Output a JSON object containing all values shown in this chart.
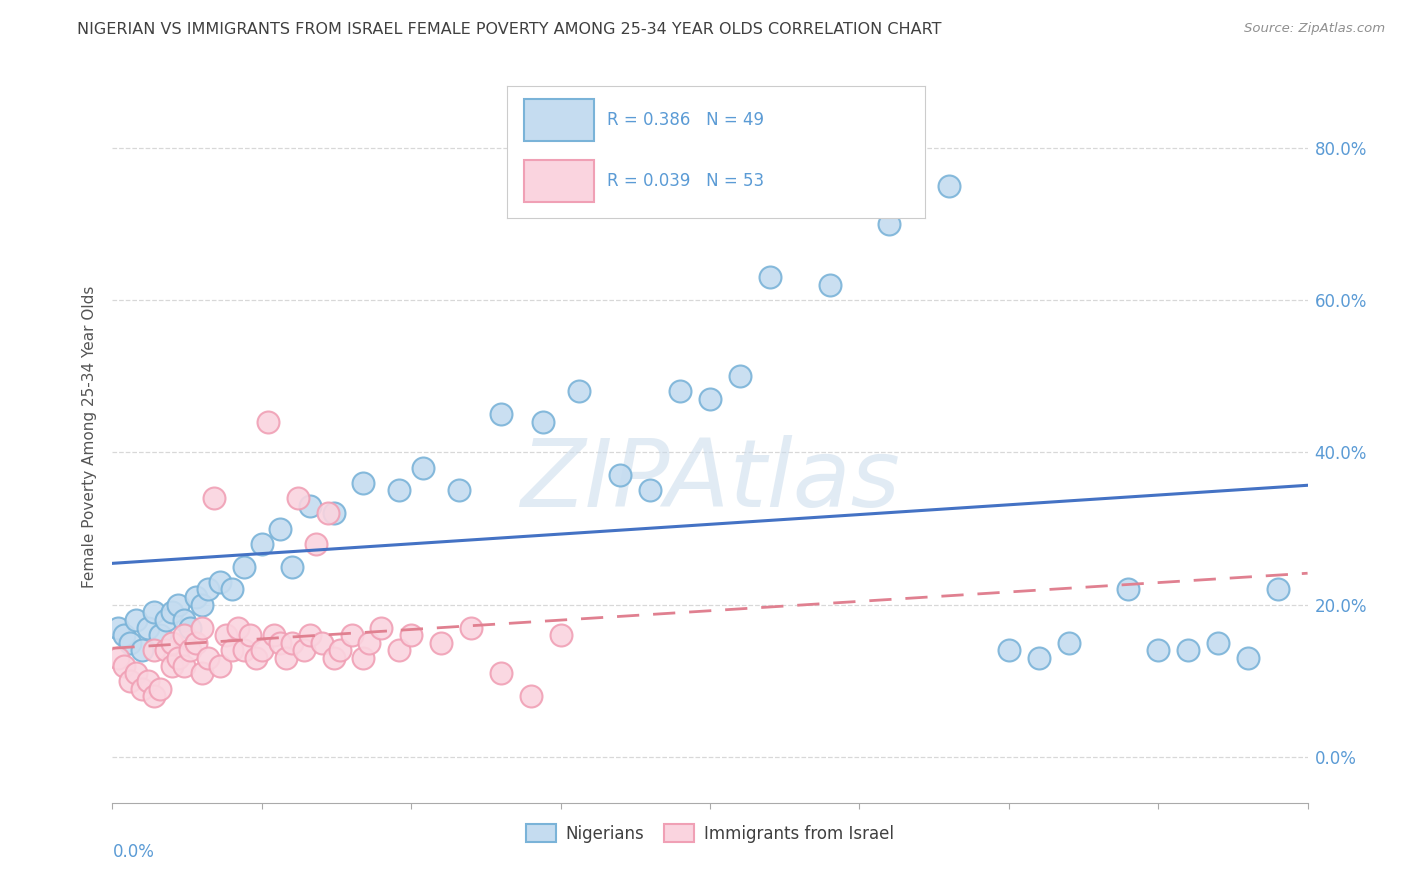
{
  "title": "NIGERIAN VS IMMIGRANTS FROM ISRAEL FEMALE POVERTY AMONG 25-34 YEAR OLDS CORRELATION CHART",
  "source": "Source: ZipAtlas.com",
  "ylabel": "Female Poverty Among 25-34 Year Olds",
  "legend_label_blue": "Nigerians",
  "legend_label_pink": "Immigrants from Israel",
  "watermark": "ZIPAtlas",
  "xmin": 0.0,
  "xmax": 0.2,
  "ymin": -0.06,
  "ymax": 0.9,
  "yticks": [
    0.0,
    0.2,
    0.4,
    0.6,
    0.8
  ],
  "ytick_labels": [
    "0.0%",
    "20.0%",
    "40.0%",
    "60.0%",
    "80.0%"
  ],
  "blue_color": "#7ab3d8",
  "blue_fill": "#c5dcf0",
  "pink_color": "#f0a0b5",
  "pink_fill": "#fad4df",
  "blue_line_color": "#4472c4",
  "pink_line_color": "#e08090",
  "legend_blue_R": "R = 0.386",
  "legend_blue_N": "N = 49",
  "legend_pink_R": "R = 0.039",
  "legend_pink_N": "N = 53",
  "background_color": "#ffffff",
  "grid_color": "#d8d8d8",
  "title_color": "#404040",
  "tick_color": "#5b9bd5",
  "blue_x": [
    0.001,
    0.002,
    0.003,
    0.004,
    0.005,
    0.006,
    0.007,
    0.008,
    0.009,
    0.01,
    0.011,
    0.012,
    0.013,
    0.014,
    0.015,
    0.016,
    0.018,
    0.02,
    0.022,
    0.025,
    0.028,
    0.03,
    0.033,
    0.037,
    0.042,
    0.048,
    0.052,
    0.058,
    0.065,
    0.072,
    0.078,
    0.085,
    0.09,
    0.095,
    0.1,
    0.105,
    0.11,
    0.12,
    0.13,
    0.14,
    0.15,
    0.155,
    0.16,
    0.17,
    0.175,
    0.18,
    0.185,
    0.19,
    0.195
  ],
  "blue_y": [
    0.17,
    0.16,
    0.15,
    0.18,
    0.14,
    0.17,
    0.19,
    0.16,
    0.18,
    0.19,
    0.2,
    0.18,
    0.17,
    0.21,
    0.2,
    0.22,
    0.23,
    0.22,
    0.25,
    0.28,
    0.3,
    0.25,
    0.33,
    0.32,
    0.36,
    0.35,
    0.38,
    0.35,
    0.45,
    0.44,
    0.48,
    0.37,
    0.35,
    0.48,
    0.47,
    0.5,
    0.63,
    0.62,
    0.7,
    0.75,
    0.14,
    0.13,
    0.15,
    0.22,
    0.14,
    0.14,
    0.15,
    0.13,
    0.22
  ],
  "pink_x": [
    0.001,
    0.002,
    0.003,
    0.004,
    0.005,
    0.006,
    0.007,
    0.007,
    0.008,
    0.009,
    0.01,
    0.01,
    0.011,
    0.012,
    0.012,
    0.013,
    0.014,
    0.015,
    0.015,
    0.016,
    0.017,
    0.018,
    0.019,
    0.02,
    0.021,
    0.022,
    0.023,
    0.024,
    0.025,
    0.026,
    0.027,
    0.028,
    0.029,
    0.03,
    0.031,
    0.032,
    0.033,
    0.034,
    0.035,
    0.036,
    0.037,
    0.038,
    0.04,
    0.042,
    0.043,
    0.045,
    0.048,
    0.05,
    0.055,
    0.06,
    0.065,
    0.07,
    0.075
  ],
  "pink_y": [
    0.13,
    0.12,
    0.1,
    0.11,
    0.09,
    0.1,
    0.14,
    0.08,
    0.09,
    0.14,
    0.12,
    0.15,
    0.13,
    0.16,
    0.12,
    0.14,
    0.15,
    0.11,
    0.17,
    0.13,
    0.34,
    0.12,
    0.16,
    0.14,
    0.17,
    0.14,
    0.16,
    0.13,
    0.14,
    0.44,
    0.16,
    0.15,
    0.13,
    0.15,
    0.34,
    0.14,
    0.16,
    0.28,
    0.15,
    0.32,
    0.13,
    0.14,
    0.16,
    0.13,
    0.15,
    0.17,
    0.14,
    0.16,
    0.15,
    0.17,
    0.11,
    0.08,
    0.16
  ]
}
